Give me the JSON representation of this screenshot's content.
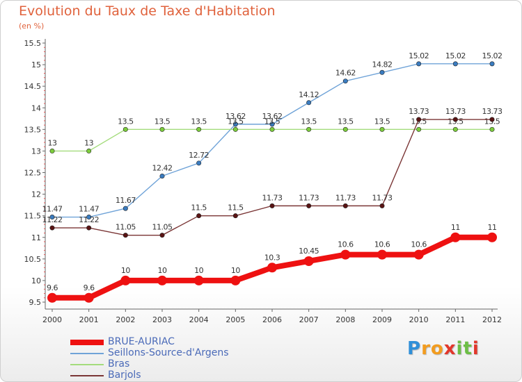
{
  "header": {
    "title": "Evolution du Taux de Taxe d'Habitation",
    "subtitle": "(en %)"
  },
  "logo": {
    "letters": [
      "P",
      "r",
      "o",
      "x",
      "i",
      "t",
      "i"
    ],
    "colors": [
      "#2f8fd8",
      "#f29c1f",
      "#f29c1f",
      "#e2372b",
      "#6cbe45",
      "#6cbe45",
      "#e2372b"
    ]
  },
  "chart_data": {
    "type": "line",
    "title": "Evolution du Taux de Taxe d'Habitation",
    "subtitle": "(en %)",
    "xlabel": "",
    "ylabel": "",
    "x": [
      2000,
      2001,
      2002,
      2003,
      2004,
      2005,
      2006,
      2007,
      2008,
      2009,
      2010,
      2011,
      2012
    ],
    "ylim": [
      9.5,
      15.5
    ],
    "yticks": [
      9.5,
      10,
      10.5,
      11,
      11.5,
      12,
      12.5,
      13,
      13.5,
      14,
      14.5,
      15,
      15.5
    ],
    "grid": false,
    "legend_position": "bottom-left",
    "series": [
      {
        "name": "BRUE-AURIAC",
        "color": "#ee1111",
        "bold": true,
        "values": [
          9.6,
          9.6,
          10,
          10,
          10,
          10,
          10.3,
          10.45,
          10.6,
          10.6,
          10.6,
          11,
          11
        ],
        "labels": [
          "9.6",
          "9.6",
          "10",
          "10",
          "10",
          "10",
          "10.3",
          "10.45",
          "10.6",
          "10.6",
          "10.6",
          "11",
          "11"
        ]
      },
      {
        "name": "Seillons-Source-d'Argens",
        "color": "#6fa3d8",
        "marker_color": "#3a7cc0",
        "values": [
          11.47,
          11.47,
          11.67,
          12.42,
          12.72,
          13.62,
          13.62,
          14.12,
          14.62,
          14.82,
          15.02,
          15.02,
          15.02
        ],
        "labels": [
          "11.47",
          "11.47",
          "11.67",
          "12.42",
          "12.72",
          "13.62",
          "13.62",
          "14.12",
          "14.62",
          "14.82",
          "15.02",
          "15.02",
          "15.02"
        ]
      },
      {
        "name": "Bras",
        "color": "#a4dc7c",
        "marker_color": "#7ccc3c",
        "values": [
          13,
          13,
          13.5,
          13.5,
          13.5,
          13.5,
          13.5,
          13.5,
          13.5,
          13.5,
          13.5,
          13.5,
          13.5
        ],
        "labels": [
          "13",
          "13",
          "13.5",
          "13.5",
          "13.5",
          "13.5",
          "13.5",
          "13.5",
          "13.5",
          "13.5",
          "13.5",
          "13.5",
          "13.5"
        ]
      },
      {
        "name": "Barjols",
        "color": "#7a3535",
        "marker_color": "#5a1414",
        "values": [
          11.22,
          11.22,
          11.05,
          11.05,
          11.5,
          11.5,
          11.73,
          11.73,
          11.73,
          11.73,
          13.73,
          13.73,
          13.73
        ],
        "labels": [
          "11.22",
          "11.22",
          "11.05",
          "11.05",
          "11.5",
          "11.5",
          "11.73",
          "11.73",
          "11.73",
          "11.73",
          "13.73",
          "13.73",
          "13.73"
        ]
      }
    ]
  }
}
